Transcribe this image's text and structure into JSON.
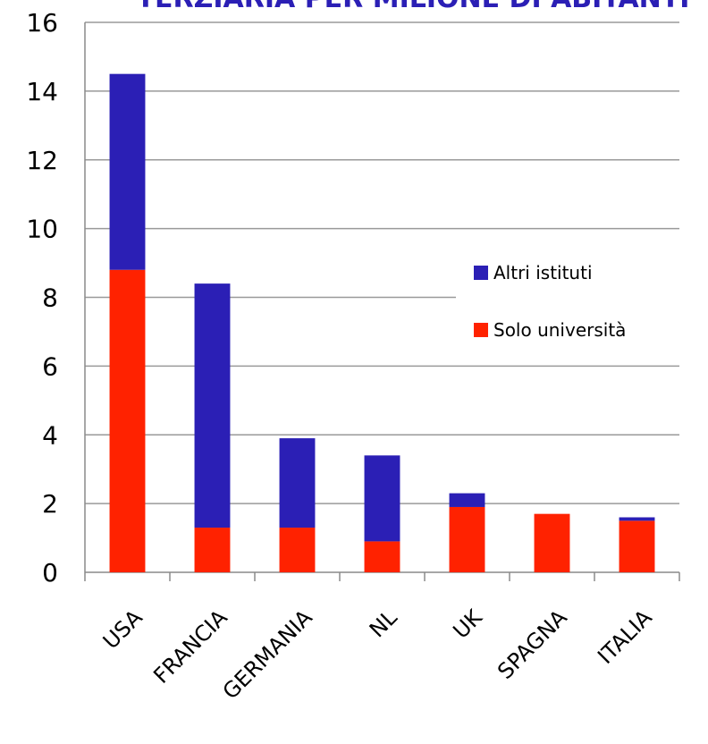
{
  "chart_data": {
    "type": "bar",
    "stacked": true,
    "title": "TERZIARIA PER MILIONE DI ABITANTI",
    "categories": [
      "USA",
      "FRANCIA",
      "GERMANIA",
      "NL",
      "UK",
      "SPAGNA",
      "ITALIA"
    ],
    "series": [
      {
        "name": "Solo università",
        "color": "#ff2200",
        "values": [
          8.8,
          1.3,
          1.3,
          0.9,
          1.9,
          1.7,
          1.5
        ]
      },
      {
        "name": "Altri istituti",
        "color": "#2b1fb5",
        "values": [
          5.7,
          7.1,
          2.6,
          2.5,
          0.4,
          0.0,
          0.1
        ]
      }
    ],
    "ylim": [
      0,
      16
    ],
    "yticks": [
      0,
      2,
      4,
      6,
      8,
      10,
      12,
      14,
      16
    ],
    "grid": true,
    "legend_position": "center-right",
    "legend_order": [
      "Altri istituti",
      "Solo università"
    ]
  }
}
